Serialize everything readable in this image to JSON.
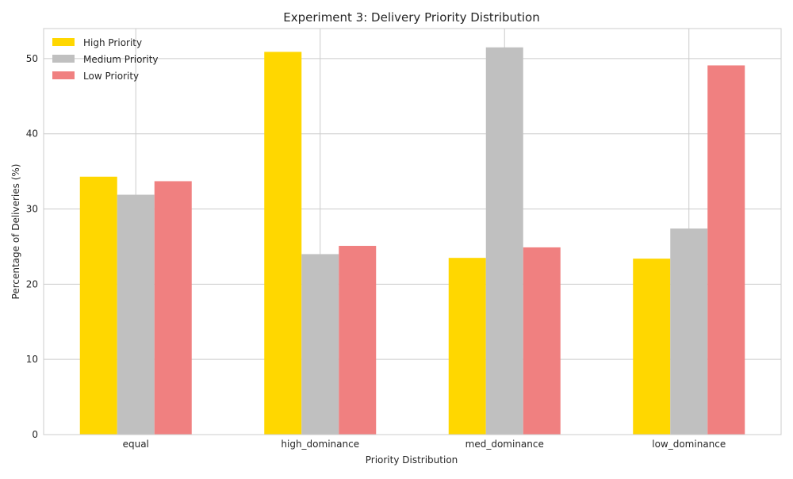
{
  "chart_data": {
    "type": "bar",
    "title": "Experiment 3: Delivery Priority Distribution",
    "xlabel": "Priority Distribution",
    "ylabel": "Percentage of Deliveries (%)",
    "categories": [
      "equal",
      "high_dominance",
      "med_dominance",
      "low_dominance"
    ],
    "series": [
      {
        "name": "High Priority",
        "color": "#ffd700",
        "values": [
          34.3,
          50.9,
          23.5,
          23.4
        ]
      },
      {
        "name": "Medium Priority",
        "color": "#c0c0c0",
        "values": [
          31.9,
          24.0,
          51.5,
          27.4
        ]
      },
      {
        "name": "Low Priority",
        "color": "#f08080",
        "values": [
          33.7,
          25.1,
          24.9,
          49.1
        ]
      }
    ],
    "ylim": [
      0,
      54
    ],
    "yticks": [
      0,
      10,
      20,
      30,
      40,
      50
    ],
    "grid": true,
    "legend_position": "top-left"
  }
}
